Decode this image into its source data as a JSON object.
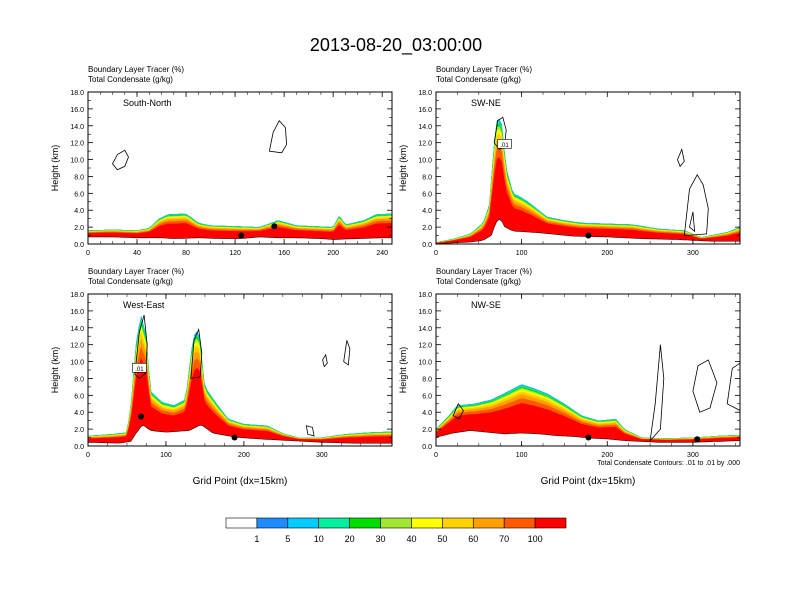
{
  "title": "2013-08-20_03:00:00",
  "colors": {
    "frame": "#000000",
    "contour": "#000000",
    "palette": [
      "#ffffff",
      "#1e8cff",
      "#00ccff",
      "#00f0a0",
      "#00dd00",
      "#a0e632",
      "#ffff00",
      "#ffd200",
      "#ffa000",
      "#ff5a00",
      "#ff0000"
    ]
  },
  "colorbar": {
    "labels": [
      "1",
      "5",
      "10",
      "20",
      "30",
      "40",
      "50",
      "60",
      "70",
      "100"
    ]
  },
  "footnote": "Total Condensate Contours: .01 to .01 by .000",
  "chart_data": [
    {
      "type": "heatmap",
      "title": "South-North",
      "legend_lines": [
        "Boundary Layer Tracer   (%)",
        "Total Condensate   (g/kg)"
      ],
      "xlabel": "",
      "ylabel": "Height (km)",
      "xlim": [
        0,
        248
      ],
      "ylim": [
        0,
        18
      ],
      "xticks": [
        "0",
        "40",
        "80",
        "120",
        "160",
        "200",
        "240"
      ],
      "yticks": [
        "0.0",
        "2.0",
        "4.0",
        "6.0",
        "8.0",
        "10.0",
        "12.0",
        "14.0",
        "16.0",
        "18.0"
      ],
      "terrain": [
        [
          0,
          0.8
        ],
        [
          20,
          0.8
        ],
        [
          40,
          0.7
        ],
        [
          60,
          0.7
        ],
        [
          70,
          0.6
        ],
        [
          90,
          0.7
        ],
        [
          110,
          0.6
        ],
        [
          125,
          0.6
        ],
        [
          140,
          0.8
        ],
        [
          155,
          0.7
        ],
        [
          170,
          0.7
        ],
        [
          190,
          0.6
        ],
        [
          200,
          0.5
        ],
        [
          220,
          0.6
        ],
        [
          240,
          0.7
        ],
        [
          248,
          0.7
        ]
      ],
      "blt_top": [
        [
          0,
          1.6
        ],
        [
          20,
          1.7
        ],
        [
          40,
          1.6
        ],
        [
          50,
          1.9
        ],
        [
          58,
          3.0
        ],
        [
          65,
          3.5
        ],
        [
          80,
          3.6
        ],
        [
          90,
          2.5
        ],
        [
          100,
          2.2
        ],
        [
          120,
          2.1
        ],
        [
          140,
          2.0
        ],
        [
          155,
          2.8
        ],
        [
          170,
          2.2
        ],
        [
          185,
          2.1
        ],
        [
          200,
          2.0
        ],
        [
          205,
          3.4
        ],
        [
          210,
          2.3
        ],
        [
          225,
          2.8
        ],
        [
          235,
          3.5
        ],
        [
          248,
          3.6
        ]
      ],
      "markers": [
        [
          125,
          1.0
        ],
        [
          152,
          2.1
        ]
      ],
      "contour_label": "",
      "cloud_contours": [
        [
          [
            20,
            9.5
          ],
          [
            24,
            10.6
          ],
          [
            30,
            11.1
          ],
          [
            33,
            10.3
          ],
          [
            30,
            9.2
          ],
          [
            24,
            8.8
          ]
        ],
        [
          [
            148,
            11
          ],
          [
            151,
            13.2
          ],
          [
            156,
            14.6
          ],
          [
            161,
            13.8
          ],
          [
            162,
            11.8
          ],
          [
            158,
            10.8
          ]
        ]
      ]
    },
    {
      "type": "heatmap",
      "title": "SW-NE",
      "legend_lines": [
        "Boundary Layer Tracer   (%)",
        "Total Condensate   (g/kg)"
      ],
      "xlabel": "",
      "ylabel": "Height (km)",
      "xlim": [
        0,
        355
      ],
      "ylim": [
        0,
        18
      ],
      "xticks": [
        "0",
        "100",
        "200",
        "300"
      ],
      "yticks": [
        "0.0",
        "2.0",
        "4.0",
        "6.0",
        "8.0",
        "10.0",
        "12.0",
        "14.0",
        "16.0",
        "18.0"
      ],
      "terrain": [
        [
          0,
          0.0
        ],
        [
          40,
          0.2
        ],
        [
          55,
          0.4
        ],
        [
          65,
          1.0
        ],
        [
          70,
          2.5
        ],
        [
          75,
          3.0
        ],
        [
          80,
          2.0
        ],
        [
          90,
          1.5
        ],
        [
          120,
          1.3
        ],
        [
          160,
          0.9
        ],
        [
          200,
          0.8
        ],
        [
          240,
          0.6
        ],
        [
          280,
          0.5
        ],
        [
          320,
          0.3
        ],
        [
          355,
          0.3
        ]
      ],
      "blt_top": [
        [
          0,
          0.2
        ],
        [
          20,
          0.6
        ],
        [
          40,
          1.2
        ],
        [
          55,
          2.5
        ],
        [
          62,
          4.5
        ],
        [
          70,
          14.5
        ],
        [
          76,
          15.0
        ],
        [
          82,
          9.0
        ],
        [
          90,
          6.0
        ],
        [
          100,
          5.5
        ],
        [
          110,
          4.8
        ],
        [
          130,
          3.2
        ],
        [
          150,
          2.8
        ],
        [
          170,
          2.5
        ],
        [
          200,
          2.4
        ],
        [
          230,
          2.3
        ],
        [
          260,
          1.8
        ],
        [
          290,
          1.6
        ],
        [
          310,
          0.8
        ],
        [
          340,
          1.4
        ],
        [
          355,
          2.0
        ]
      ],
      "markers": [
        [
          178,
          1.0
        ]
      ],
      "contour_label": ".01",
      "cloud_contours": [
        [
          [
            68,
            12
          ],
          [
            72,
            14.6
          ],
          [
            78,
            15.0
          ],
          [
            82,
            13.5
          ],
          [
            80,
            11.5
          ],
          [
            74,
            11.2
          ]
        ],
        [
          [
            290,
            1.0
          ],
          [
            296,
            6.5
          ],
          [
            305,
            8.2
          ],
          [
            312,
            7.0
          ],
          [
            318,
            4.2
          ],
          [
            316,
            1.2
          ]
        ],
        [
          [
            296,
            2.0
          ],
          [
            300,
            3.8
          ],
          [
            302,
            1.5
          ]
        ],
        [
          [
            282,
            10
          ],
          [
            287,
            11.2
          ],
          [
            290,
            9.8
          ],
          [
            285,
            9.2
          ]
        ]
      ]
    },
    {
      "type": "heatmap",
      "title": "West-East",
      "legend_lines": [
        "Boundary Layer Tracer   (%)",
        "Total Condensate   (g/kg)"
      ],
      "xlabel": "Grid Point (dx=15km)",
      "ylabel": "Height (km)",
      "xlim": [
        0,
        390
      ],
      "ylim": [
        0,
        18
      ],
      "xticks": [
        "0",
        "100",
        "200",
        "300"
      ],
      "yticks": [
        "0.0",
        "2.0",
        "4.0",
        "6.0",
        "8.0",
        "10.0",
        "12.0",
        "14.0",
        "16.0",
        "18.0"
      ],
      "terrain": [
        [
          0,
          0.4
        ],
        [
          40,
          0.3
        ],
        [
          55,
          0.5
        ],
        [
          62,
          1.5
        ],
        [
          70,
          2.5
        ],
        [
          80,
          1.8
        ],
        [
          100,
          1.6
        ],
        [
          130,
          1.8
        ],
        [
          145,
          2.5
        ],
        [
          160,
          1.5
        ],
        [
          190,
          1.0
        ],
        [
          220,
          0.8
        ],
        [
          260,
          0.6
        ],
        [
          300,
          0.4
        ],
        [
          340,
          0.3
        ],
        [
          390,
          0.3
        ]
      ],
      "blt_top": [
        [
          0,
          1.2
        ],
        [
          30,
          1.4
        ],
        [
          50,
          1.6
        ],
        [
          55,
          5.0
        ],
        [
          62,
          12.5
        ],
        [
          68,
          15.5
        ],
        [
          75,
          13.0
        ],
        [
          80,
          6.5
        ],
        [
          95,
          5.2
        ],
        [
          110,
          4.8
        ],
        [
          125,
          5.5
        ],
        [
          135,
          13.0
        ],
        [
          142,
          13.8
        ],
        [
          150,
          7.0
        ],
        [
          165,
          5.0
        ],
        [
          180,
          3.2
        ],
        [
          200,
          2.6
        ],
        [
          230,
          2.4
        ],
        [
          250,
          1.5
        ],
        [
          270,
          1.0
        ],
        [
          300,
          1.0
        ],
        [
          330,
          1.4
        ],
        [
          360,
          1.6
        ],
        [
          390,
          1.7
        ]
      ],
      "markers": [
        [
          188,
          1.0
        ],
        [
          68,
          3.5
        ]
      ],
      "contour_label": ".01",
      "cloud_contours": [
        [
          [
            60,
            8.5
          ],
          [
            66,
            13.5
          ],
          [
            72,
            15.5
          ],
          [
            76,
            12.0
          ],
          [
            74,
            8.6
          ],
          [
            66,
            8.0
          ]
        ],
        [
          [
            132,
            8.0
          ],
          [
            136,
            12.5
          ],
          [
            142,
            13.8
          ],
          [
            146,
            11.0
          ],
          [
            144,
            8.2
          ]
        ],
        [
          [
            280,
            2.4
          ],
          [
            288,
            2.2
          ],
          [
            290,
            1.2
          ],
          [
            282,
            1.4
          ]
        ],
        [
          [
            328,
            10
          ],
          [
            332,
            12.5
          ],
          [
            336,
            11.5
          ],
          [
            334,
            9.6
          ]
        ],
        [
          [
            301,
            10.2
          ],
          [
            305,
            10.8
          ],
          [
            307,
            9.8
          ],
          [
            303,
            9.4
          ]
        ]
      ]
    },
    {
      "type": "heatmap",
      "title": "NW-SE",
      "legend_lines": [
        "Boundary Layer Tracer   (%)",
        "Total Condensate   (g/kg)"
      ],
      "xlabel": "Grid Point (dx=15km)",
      "ylabel": "Height (km)",
      "xlim": [
        0,
        355
      ],
      "ylim": [
        0,
        18
      ],
      "xticks": [
        "0",
        "100",
        "200",
        "300"
      ],
      "yticks": [
        "0.0",
        "2.0",
        "4.0",
        "6.0",
        "8.0",
        "10.0",
        "12.0",
        "14.0",
        "16.0",
        "18.0"
      ],
      "terrain": [
        [
          0,
          1.0
        ],
        [
          20,
          1.5
        ],
        [
          40,
          1.8
        ],
        [
          60,
          1.6
        ],
        [
          80,
          1.4
        ],
        [
          100,
          1.5
        ],
        [
          120,
          1.4
        ],
        [
          140,
          1.2
        ],
        [
          160,
          1.1
        ],
        [
          180,
          0.9
        ],
        [
          200,
          0.8
        ],
        [
          220,
          0.6
        ],
        [
          260,
          0.4
        ],
        [
          300,
          0.4
        ],
        [
          355,
          0.6
        ]
      ],
      "blt_top": [
        [
          0,
          2.0
        ],
        [
          15,
          3.6
        ],
        [
          25,
          4.8
        ],
        [
          45,
          5.0
        ],
        [
          65,
          5.5
        ],
        [
          85,
          6.5
        ],
        [
          100,
          7.3
        ],
        [
          115,
          6.8
        ],
        [
          130,
          6.2
        ],
        [
          150,
          5.0
        ],
        [
          170,
          3.6
        ],
        [
          190,
          3.0
        ],
        [
          210,
          3.2
        ],
        [
          220,
          2.0
        ],
        [
          240,
          1.0
        ],
        [
          270,
          0.9
        ],
        [
          300,
          1.0
        ],
        [
          330,
          1.2
        ],
        [
          355,
          1.3
        ]
      ],
      "markers": [
        [
          178,
          1.0
        ],
        [
          305,
          0.8
        ]
      ],
      "contour_label": "",
      "cloud_contours": [
        [
          [
            250,
            0.6
          ],
          [
            256,
            5.0
          ],
          [
            262,
            12.0
          ],
          [
            266,
            8.0
          ],
          [
            262,
            2.0
          ]
        ],
        [
          [
            300,
            6.5
          ],
          [
            306,
            9.5
          ],
          [
            318,
            10.2
          ],
          [
            328,
            7.5
          ],
          [
            320,
            4.5
          ],
          [
            308,
            4.0
          ]
        ],
        [
          [
            340,
            5.0
          ],
          [
            346,
            9.2
          ],
          [
            355,
            9.8
          ],
          [
            355,
            4.2
          ]
        ],
        [
          [
            20,
            3.6
          ],
          [
            26,
            5.0
          ],
          [
            32,
            4.2
          ],
          [
            27,
            3.2
          ]
        ]
      ]
    }
  ]
}
